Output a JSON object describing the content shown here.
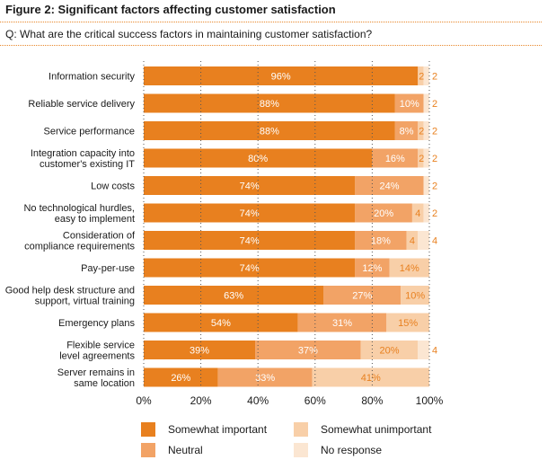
{
  "figure_title": "Figure 2: Significant factors affecting customer satisfaction",
  "question": "Q: What are the critical success factors in maintaining customer satisfaction?",
  "chart_data": {
    "type": "bar",
    "orientation": "horizontal",
    "stacked": true,
    "categories": [
      "Information security",
      "Reliable service delivery",
      "Service performance",
      "Integration capacity into\ncustomer's existing IT",
      "Low costs",
      "No technological hurdles,\neasy to implement",
      "Consideration of\ncompliance requirements",
      "Pay-per-use",
      "Good help desk structure and\nsupport, virtual training",
      "Emergency plans",
      "Flexible service\nlevel agreements",
      "Server remains in\nsame location"
    ],
    "series": [
      {
        "name": "Somewhat important",
        "color": "#e8801f",
        "values": [
          96,
          88,
          88,
          80,
          74,
          74,
          74,
          74,
          63,
          54,
          39,
          26
        ]
      },
      {
        "name": "Neutral",
        "color": "#f2a366",
        "values": [
          0,
          10,
          8,
          16,
          24,
          20,
          18,
          12,
          27,
          31,
          37,
          33
        ]
      },
      {
        "name": "Somewhat unimportant",
        "color": "#f8cfa8",
        "values": [
          2,
          0,
          2,
          2,
          0,
          4,
          4,
          14,
          10,
          15,
          20,
          41
        ]
      },
      {
        "name": "No response",
        "color": "#fbe6d2",
        "values": [
          2,
          2,
          2,
          2,
          2,
          2,
          4,
          0,
          0,
          0,
          4,
          0
        ]
      }
    ],
    "data_labels": [
      [
        "96%",
        "",
        "2",
        "2"
      ],
      [
        "88%",
        "10%",
        "",
        "2"
      ],
      [
        "88%",
        "8%",
        "2",
        "2"
      ],
      [
        "80%",
        "16%",
        "2",
        "2"
      ],
      [
        "74%",
        "24%",
        "",
        "2"
      ],
      [
        "74%",
        "20%",
        "4",
        "2"
      ],
      [
        "74%",
        "18%",
        "4",
        "4"
      ],
      [
        "74%",
        "12%",
        "14%",
        ""
      ],
      [
        "63%",
        "27%",
        "10%",
        ""
      ],
      [
        "54%",
        "31%",
        "15%",
        ""
      ],
      [
        "39%",
        "37%",
        "20%",
        "4"
      ],
      [
        "26%",
        "33%",
        "41%",
        ""
      ]
    ],
    "xticks": [
      "0%",
      "20%",
      "40%",
      "60%",
      "80%",
      "100%"
    ],
    "xlim": [
      0,
      100
    ],
    "grid": "vertical dotted",
    "legend_placement": "bottom"
  }
}
